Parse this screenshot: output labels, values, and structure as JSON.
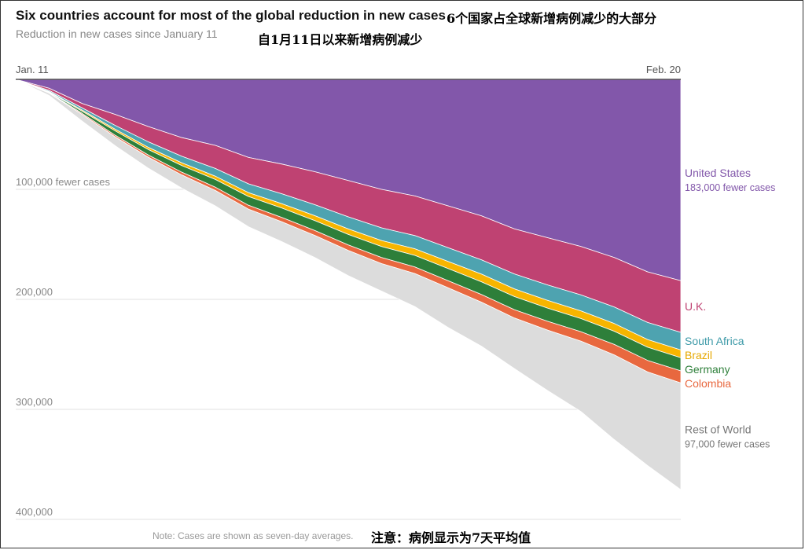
{
  "header": {
    "title": "Six countries account for most of the global reduction in new cases",
    "subtitle": "Reduction in new cases since January 11",
    "title_cn": "6个国家占全球新增病例减少的大部分",
    "subtitle_cn": "自1月11日以来新增病例减少"
  },
  "footer": {
    "note": "Note: Cases are shown as seven-day averages.",
    "note_cn": "注意：病例显示为7天平均值"
  },
  "chart_data": {
    "type": "area",
    "stacked": true,
    "x_start_label": "Jan. 11",
    "x_end_label": "Feb. 20",
    "x_days": [
      0,
      2,
      4,
      6,
      8,
      10,
      12,
      14,
      16,
      18,
      20,
      22,
      24,
      26,
      28,
      30,
      32,
      34,
      36,
      38,
      40
    ],
    "ylim": [
      0,
      400000
    ],
    "y_ticks": [
      {
        "value": 100000,
        "label": "100,000 fewer cases"
      },
      {
        "value": 200000,
        "label": "200,000"
      },
      {
        "value": 300000,
        "label": "300,000"
      },
      {
        "value": 400000,
        "label": "400,000"
      }
    ],
    "grid": true,
    "series": [
      {
        "name": "United States",
        "note": "183,000 fewer cases",
        "color": "#8257aa",
        "label_color": "#8257aa",
        "values": [
          0,
          8000,
          22000,
          32000,
          43000,
          53000,
          60000,
          71000,
          77000,
          84000,
          92000,
          100000,
          106000,
          115000,
          124000,
          136000,
          144000,
          152000,
          162000,
          175000,
          183000
        ]
      },
      {
        "name": "U.K.",
        "color": "#bf4272",
        "label_color": "#bf4272",
        "values": [
          0,
          2000,
          4000,
          10000,
          14000,
          17000,
          21000,
          24000,
          27000,
          30000,
          33000,
          35000,
          36000,
          38000,
          40000,
          41000,
          43000,
          44000,
          45000,
          46000,
          47000
        ]
      },
      {
        "name": "South Africa",
        "color": "#4ea3b0",
        "label_color": "#3d9aa8",
        "values": [
          0,
          1000,
          2000,
          3500,
          5000,
          6000,
          7000,
          8000,
          9000,
          10000,
          11000,
          11500,
          12000,
          12500,
          13000,
          13500,
          14000,
          14500,
          15000,
          15500,
          16000
        ]
      },
      {
        "name": "Brazil",
        "color": "#f7b500",
        "label_color": "#e6a800",
        "values": [
          0,
          500,
          1000,
          1500,
          2000,
          2500,
          3000,
          3500,
          4000,
          4500,
          5000,
          5500,
          6000,
          6500,
          7000,
          7000,
          7000,
          7000,
          7000,
          7000,
          7000
        ]
      },
      {
        "name": "Germany",
        "color": "#2e7f3a",
        "label_color": "#2e7f3a",
        "values": [
          0,
          500,
          2000,
          4000,
          5000,
          6000,
          7000,
          8000,
          8500,
          9000,
          9500,
          10000,
          10500,
          11000,
          11500,
          12000,
          12000,
          12000,
          12000,
          12000,
          12000
        ]
      },
      {
        "name": "Colombia",
        "color": "#e8683f",
        "label_color": "#e8683f",
        "values": [
          0,
          500,
          1000,
          1500,
          2000,
          2500,
          3000,
          3500,
          4000,
          4500,
          5000,
          5500,
          6000,
          6500,
          7000,
          7500,
          8000,
          8500,
          9500,
          10500,
          11000
        ]
      },
      {
        "name": "Rest of World",
        "note": "97,000 fewer cases",
        "color": "#dcdcdc",
        "label_color": "#777777",
        "values": [
          0,
          2000,
          6000,
          8000,
          10000,
          12000,
          14000,
          16000,
          18000,
          20000,
          23000,
          25000,
          30000,
          36000,
          40000,
          46000,
          55000,
          64000,
          77000,
          85000,
          97000
        ]
      }
    ]
  }
}
